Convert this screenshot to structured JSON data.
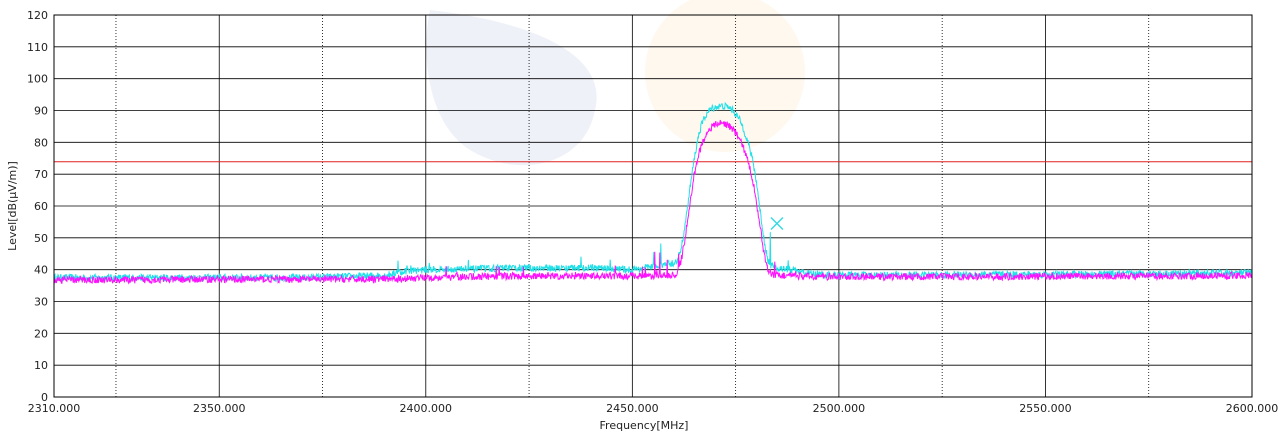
{
  "chart_data": {
    "type": "line",
    "title": "",
    "xlabel": "Frequency[MHz]",
    "ylabel": "Level[dB(µV/m)]",
    "xlim": [
      2310,
      2600
    ],
    "ylim": [
      0,
      120
    ],
    "x_ticks": [
      2310,
      2350,
      2400,
      2450,
      2500,
      2550,
      2600
    ],
    "x_tick_labels": [
      "2310.000",
      "2350.000",
      "2400.000",
      "2450.000",
      "2500.000",
      "2550.000",
      "2600.000"
    ],
    "x_minor_dotted": [
      2325,
      2375,
      2425,
      2475,
      2525,
      2575
    ],
    "y_ticks": [
      0,
      10,
      20,
      30,
      40,
      50,
      60,
      70,
      80,
      90,
      100,
      110,
      120
    ],
    "y_tick_labels": [
      "0",
      "10",
      "20",
      "30",
      "40",
      "50",
      "60",
      "70",
      "80",
      "90",
      "100",
      "110",
      "120"
    ],
    "grid": true,
    "limit_line": {
      "value": 73.9,
      "color": "#e02020"
    },
    "marker": {
      "x": 2485,
      "y": 54.5,
      "color": "#35d8e0"
    },
    "series": [
      {
        "color": "#20e0e8",
        "x": [
          2310,
          2330,
          2350,
          2370,
          2390,
          2395,
          2400,
          2410,
          2420,
          2430,
          2440,
          2450,
          2455,
          2460,
          2461,
          2462,
          2463,
          2464,
          2465,
          2466,
          2467,
          2468,
          2469,
          2470,
          2471,
          2472,
          2473,
          2474,
          2475,
          2476,
          2477,
          2478,
          2479,
          2480,
          2481,
          2482,
          2483,
          2484,
          2485,
          2488,
          2490,
          2492,
          2495,
          2500,
          2520,
          2540,
          2560,
          2580,
          2600
        ],
        "y": [
          37.5,
          37.5,
          37.5,
          37.5,
          38.2,
          39.5,
          40,
          40.2,
          40.5,
          40.5,
          40.5,
          40,
          41,
          42,
          43,
          48,
          56,
          66,
          75,
          82,
          86.5,
          89,
          90.5,
          91,
          91.3,
          91.4,
          91.2,
          90.5,
          89,
          87,
          84,
          80,
          75,
          68,
          58,
          48,
          42,
          41,
          40.5,
          40,
          39.5,
          39,
          38.5,
          38.3,
          38.3,
          38.5,
          38.5,
          38.8,
          39
        ]
      },
      {
        "color": "#ff10ff",
        "x": [
          2310,
          2330,
          2350,
          2370,
          2390,
          2400,
          2420,
          2440,
          2450,
          2455,
          2460,
          2461,
          2462,
          2463,
          2464,
          2465,
          2466,
          2467,
          2468,
          2469,
          2470,
          2471,
          2472,
          2473,
          2474,
          2475,
          2476,
          2477,
          2478,
          2479,
          2480,
          2481,
          2482,
          2483,
          2484,
          2485,
          2490,
          2495,
          2500,
          2520,
          2540,
          2560,
          2580,
          2600
        ],
        "y": [
          36.8,
          36.8,
          37,
          37,
          37,
          37.5,
          38,
          38,
          38,
          38,
          38.2,
          39,
          44,
          52,
          61,
          70,
          76,
          80,
          83,
          84.5,
          85.5,
          86,
          86,
          85.6,
          84.5,
          83,
          81,
          78,
          74,
          69,
          62,
          53,
          44,
          39.5,
          38.5,
          38.3,
          38,
          37.8,
          37.8,
          37.8,
          37.8,
          38,
          38,
          38.2
        ]
      }
    ]
  }
}
